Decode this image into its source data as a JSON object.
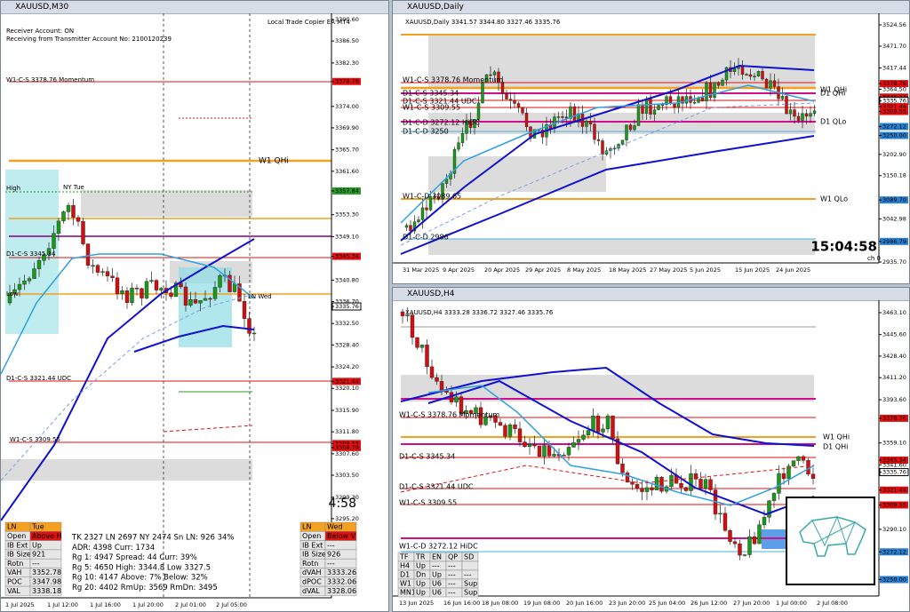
{
  "left": {
    "title": "XAUUSD,M30",
    "ea": "Local Trade Copier EA MT4",
    "receiver": "Receiver Account: ON",
    "transmitter": "Receiving from Transmitter Account No: 2100120239",
    "labels": [
      "W1-C-S 3378.76 Momentum",
      "W1 QHi",
      "NY Tue",
      "High",
      "Low",
      "D1-C-S 3345.34",
      "LN Wed",
      "D1-C-S 3321.44 UDC",
      "W1-C-S 3309.55"
    ],
    "countdown": "4:58",
    "prices": [
      "3390.60",
      "3386.50",
      "3382.30",
      "3378.76",
      "3374.00",
      "3369.90",
      "3365.70",
      "3361.60",
      "3357.84",
      "3353.30",
      "3349.10",
      "3345.34",
      "3340.80",
      "3336.70",
      "3335.76",
      "3332.50",
      "3328.40",
      "3324.20",
      "3321.44",
      "3320.10",
      "3315.90",
      "3311.80",
      "3309.55",
      "3308.79",
      "3307.60",
      "3303.50",
      "3299.30",
      "3295.20"
    ],
    "times": [
      "1 Jul 2025",
      "1 Jul 12:00",
      "1 Jul 16:00",
      "1 Jul 20:00",
      "2 Jul 01:00",
      "2 Jul 05:00"
    ],
    "stats": [
      "TK 2327  LN 2697  NY 2474    Sn LN: 926  34%",
      "ADR: 4398    Curr:  1734",
      "Rg 1: 4947  Spread: 44    Curr:  39%",
      "Rg 5: 4650  High: 3344.8    Low  3327.5",
      "Rg 10: 4147  Above: 7%    Below: 32%",
      "Rg 20: 4402  RmUp: 3569    RmDn: 3495"
    ],
    "tue": [
      [
        "LN",
        "Tue"
      ],
      [
        "Open",
        "Above H"
      ],
      [
        "IB Ext",
        "Up"
      ],
      [
        "IB Size",
        "921"
      ],
      [
        "Rotn",
        "---"
      ],
      [
        "VAH",
        "3352.78"
      ],
      [
        "POC",
        "3347.98"
      ],
      [
        "VAL",
        "3338.18"
      ]
    ],
    "wed": [
      [
        "LN",
        "Wed"
      ],
      [
        "Open",
        "Below V"
      ],
      [
        "IB Ext",
        "---"
      ],
      [
        "IB Size",
        "926"
      ],
      [
        "Rotn",
        "---"
      ],
      [
        "dVAH",
        "3333.26"
      ],
      [
        "dPOC",
        "3332.06"
      ],
      [
        "dVAL",
        "3328.06"
      ]
    ]
  },
  "daily": {
    "title": "XAUUSD,Daily",
    "header": "XAUUSD,Daily  3341.57 3344.80 3327.46 3335.76",
    "labels": [
      "W1-C-S 3378.76 Momentum",
      "D1-C-S 3345.34",
      "D1-C-S 3321.44 UDC",
      "W1-C-S 3309.55",
      "D1-C-D 3272.12 HiDC",
      "D1-C-D 3250",
      "W1-C-D 3089.65",
      "D1-C-D 2986",
      "W1 QHi",
      "D1 QHi",
      "D1 QLo",
      "W1 QLo"
    ],
    "clock": "15:04:58",
    "channel": "ch 0",
    "prices": [
      "3524.56",
      "3471.70",
      "3417.44",
      "3378.76",
      "3364.50",
      "3345.34",
      "3335.76",
      "3321.44",
      "3309.55",
      "3272.12",
      "3250.00",
      "3202.90",
      "3150.18",
      "3089.70",
      "3042.98",
      "2986.79",
      "2935.70"
    ],
    "times": [
      "31 Mar 2025",
      "9 Apr 2025",
      "20 Apr 2025",
      "29 Apr 2025",
      "8 May 2025",
      "18 May 2025",
      "27 May 2025",
      "5 Jun 2025",
      "15 Jun 2025",
      "24 Jun 2025"
    ]
  },
  "h4": {
    "title": "XAUUSD,H4",
    "header": "XAUUSD,H4  3333.28 3336.72 3327.46 3335.76",
    "labels": [
      "W1-C-S 3378.76 Momentum",
      "W1 QHi",
      "D1 QHi",
      "D1-C-S 3345.34",
      "D1-C-S 3321.44 UDC",
      "W1-C-S 3309.55",
      "W1-C-D 3272.12 HiDC"
    ],
    "prices": [
      "3463.10",
      "3445.60",
      "3428.40",
      "3411.20",
      "3393.60",
      "3378.76",
      "3359.10",
      "3345.34",
      "3341.60",
      "3335.76",
      "3321.44",
      "3309.55",
      "3290.10",
      "3272.12",
      "3250.00"
    ],
    "times": [
      "13 Jun 2025",
      "16 Jun 16:00",
      "18 Jun 08:00",
      "19 Jun 08:00",
      "20 Jun 16:00",
      "23 Jun 20:00",
      "25 Jun 04:00",
      "26 Jun 12:00",
      "27 Jun 20:00",
      "1 Jul 00:00",
      "2 Jul 08:00"
    ],
    "table": [
      [
        "TF",
        "TR",
        "EN",
        "QP",
        "SD"
      ],
      [
        "H4",
        "Up",
        "---",
        "---",
        ""
      ],
      [
        "D1",
        "Dn",
        "Up",
        "---",
        "---"
      ],
      [
        "W1",
        "Up",
        "U6",
        "---",
        "Sup"
      ],
      [
        "MN1",
        "Up",
        "U6",
        "---",
        "Sup"
      ]
    ]
  }
}
